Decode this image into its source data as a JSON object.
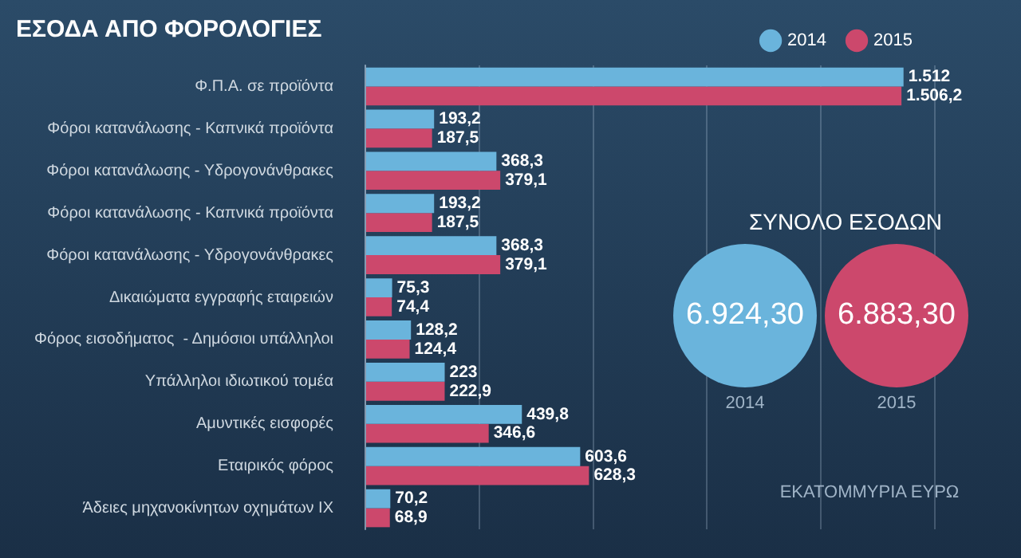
{
  "chart_data": {
    "type": "bar",
    "orientation": "horizontal",
    "title": "ΕΣΟΔΑ ΑΠΟ ΦΟΡΟΛΟΓΙΕΣ",
    "categories": [
      "Φ.Π.Α. σε προϊόντα",
      "Φόροι κατανάλωσης - Καπνικά προϊόντα",
      "Φόροι κατανάλωσης - Υδρογονάνθρακες",
      "Φόροι κατανάλωσης - Καπνικά προϊόντα",
      "Φόροι κατανάλωσης - Υδρογονάνθρακες",
      "Δικαιώματα εγγραφής εταιρειών",
      "Φόρος εισοδήματος  - Δημόσιοι υπάλληλοι",
      "Υπάλληλοι ιδιωτικού τομέα",
      "Αμυντικές εισφορές",
      "Εταιρικός φόρος",
      "Άδειες μηχανοκίνητων οχημάτων ΙΧ"
    ],
    "series": [
      {
        "name": "2014",
        "color": "#6ab4dc",
        "values": [
          1512,
          193.2,
          368.3,
          193.2,
          368.3,
          75.3,
          128.2,
          223,
          439.8,
          603.6,
          70.2
        ],
        "value_labels": [
          "1.512",
          "193,2",
          "368,3",
          "193,2",
          "368,3",
          "75,3",
          "128,2",
          "223",
          "439,8",
          "603,6",
          "70,2"
        ]
      },
      {
        "name": "2015",
        "color": "#cc486c",
        "values": [
          1506.2,
          187.5,
          379.1,
          187.5,
          379.1,
          74.4,
          124.4,
          222.9,
          346.6,
          628.3,
          68.9
        ],
        "value_labels": [
          "1.506,2",
          "187,5",
          "379,1",
          "187,5",
          "379,1",
          "74,4",
          "124,4",
          "222,9",
          "346,6",
          "628,3",
          "68,9"
        ]
      }
    ],
    "xlim": [
      0,
      1600
    ],
    "xticks": [
      {
        "value": 0,
        "label": null
      },
      {
        "value": 320,
        "label": null
      },
      {
        "value": 640,
        "label": null
      },
      {
        "value": 960,
        "label": null
      },
      {
        "value": 1280,
        "label": null
      },
      {
        "value": 1600,
        "label": null
      }
    ],
    "tick_labels": "y",
    "grid": "x",
    "legend": "top right",
    "annotations": [
      "ΣΥΝΟΛΟ ΕΣΟΔΩΝ",
      "6.924,30",
      "6.883,30",
      "2014",
      "2015",
      "ΕΚΑΤΟΜΜΥΡΙΑ ΕΥΡΩ"
    ]
  }
}
